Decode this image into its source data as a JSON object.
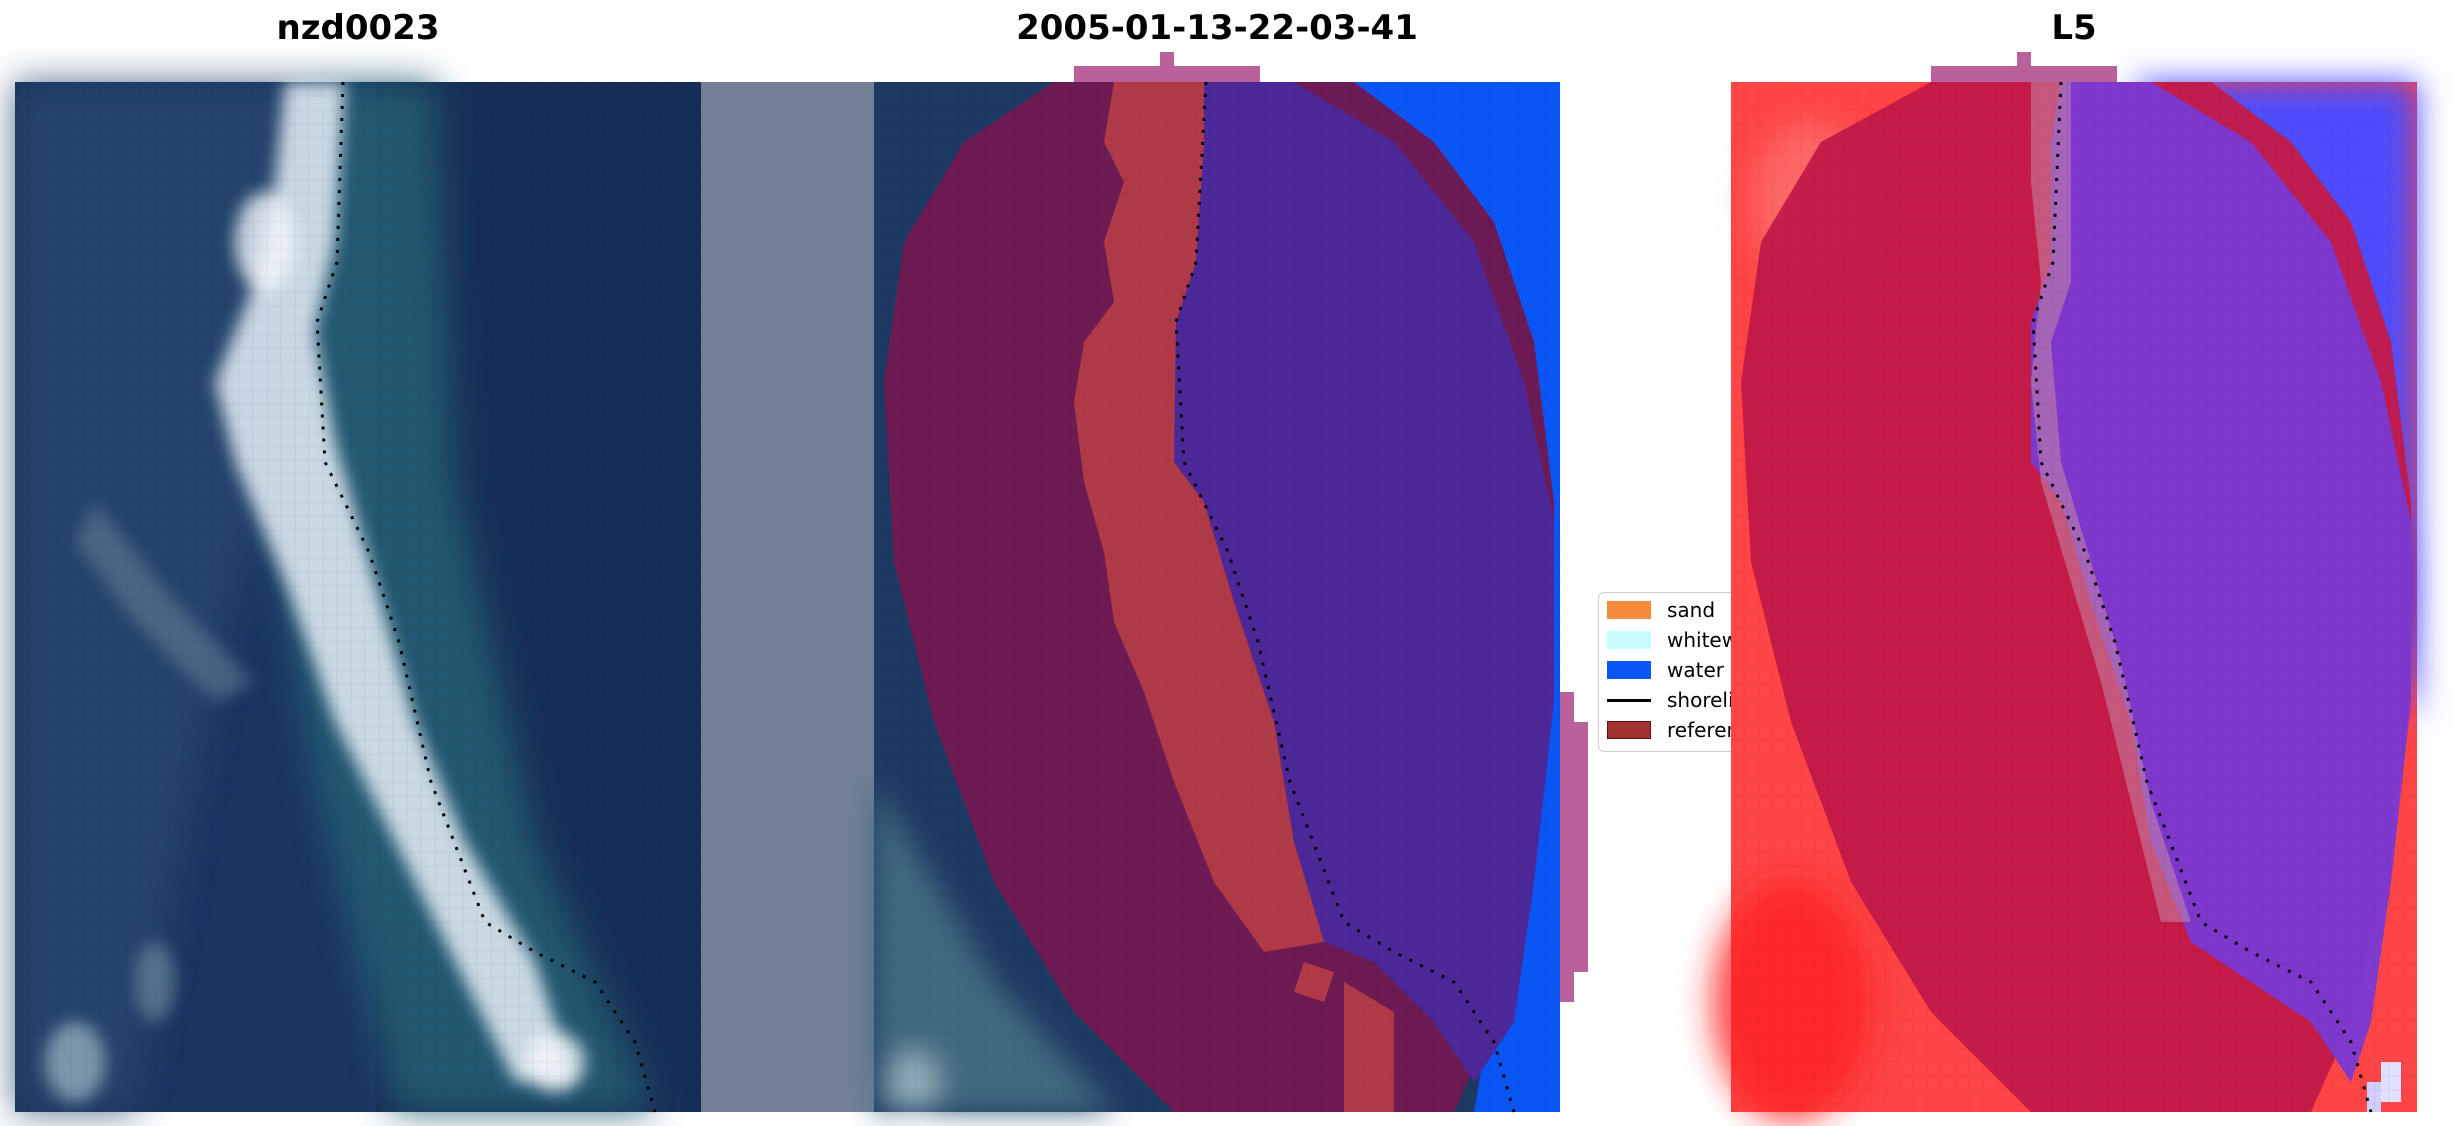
{
  "panels": [
    {
      "title": "nzd0023"
    },
    {
      "title": "2005-01-13-22-03-41"
    },
    {
      "title": "L5"
    }
  ],
  "legend": {
    "items": [
      {
        "label": "sand",
        "color": "#f58c3a",
        "kind": "patch"
      },
      {
        "label": "whitewater",
        "color": "#c8fcfc",
        "kind": "patch"
      },
      {
        "label": "water",
        "color": "#0a55f5",
        "kind": "patch"
      },
      {
        "label": "shoreline",
        "color": "#000000",
        "kind": "line"
      },
      {
        "label": "reference shoreline buffer",
        "color": "#a03232",
        "kind": "patch"
      }
    ]
  },
  "colors": {
    "ocean": "#16305a",
    "shallow": "#1e5670",
    "foam": "#dfeaf4",
    "buffer": "#701a52",
    "sand_class": "#b03a48",
    "water_class": "#4c2899",
    "open_water": "#0a55f5",
    "buffer_edge": "#b8619a",
    "land_index": "#ff3b3b",
    "index_buffer": "#c41a4a",
    "index_water": "#7a3ad6",
    "index_blue": "#4b4bff"
  }
}
